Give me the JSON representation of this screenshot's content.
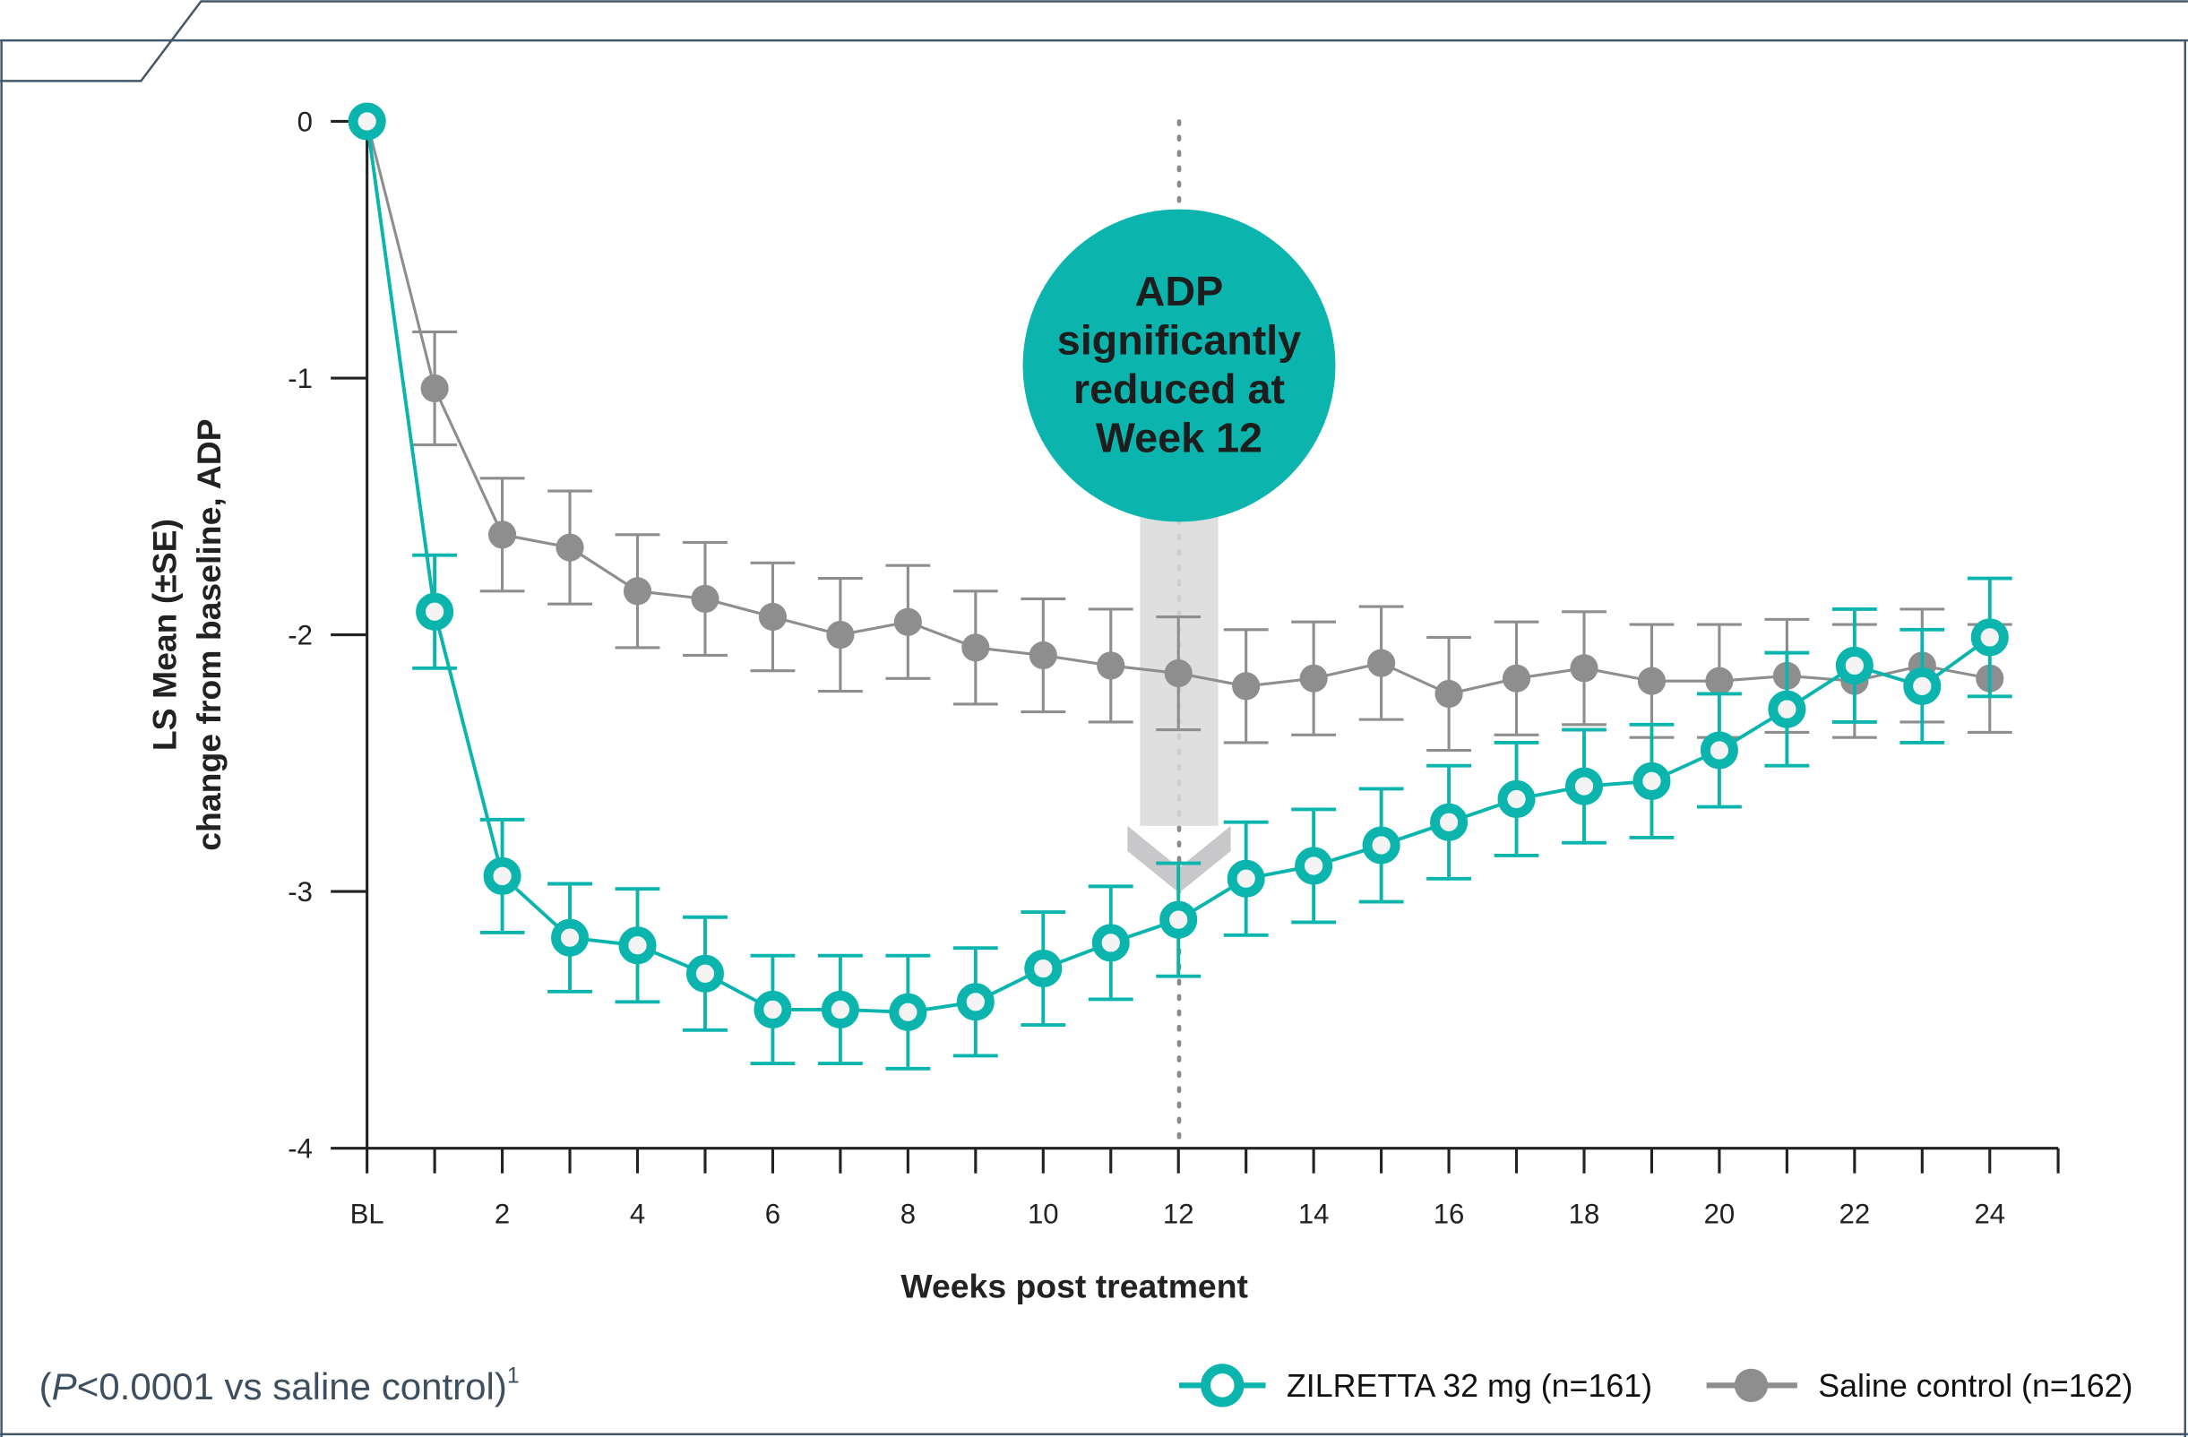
{
  "chart_data": {
    "type": "line",
    "xlabel": "Weeks post treatment",
    "ylabel": [
      "LS Mean (±SE)",
      "change from baseline, ADP"
    ],
    "ylim": [
      -4,
      0
    ],
    "yticks": [
      "0",
      "-1",
      "-2",
      "-3",
      "-4"
    ],
    "x": [
      0,
      1,
      2,
      3,
      4,
      5,
      6,
      7,
      8,
      9,
      10,
      11,
      12,
      13,
      14,
      15,
      16,
      17,
      18,
      19,
      20,
      21,
      22,
      23,
      24
    ],
    "xtick_labels": [
      "BL",
      "2",
      "4",
      "6",
      "8",
      "10",
      "12",
      "14",
      "16",
      "18",
      "20",
      "22",
      "24"
    ],
    "xtick_values": [
      0,
      2,
      4,
      6,
      8,
      10,
      12,
      14,
      16,
      18,
      20,
      22,
      24
    ],
    "grid": false,
    "legend_placement": "bottom-right",
    "series": [
      {
        "name": "ZILRETTA 32 mg (n=161)",
        "color": "#0bb5ad",
        "marker": "open-circle",
        "values": [
          0,
          -1.91,
          -2.94,
          -3.18,
          -3.21,
          -3.32,
          -3.46,
          -3.46,
          -3.47,
          -3.43,
          -3.3,
          -3.2,
          -3.11,
          -2.95,
          -2.9,
          -2.82,
          -2.73,
          -2.64,
          -2.59,
          -2.57,
          -2.45,
          -2.29,
          -2.12,
          -2.2,
          -2.01
        ],
        "se": [
          0,
          0.22,
          0.22,
          0.21,
          0.22,
          0.22,
          0.21,
          0.21,
          0.22,
          0.21,
          0.22,
          0.22,
          0.22,
          0.22,
          0.22,
          0.22,
          0.22,
          0.22,
          0.22,
          0.22,
          0.22,
          0.22,
          0.22,
          0.22,
          0.23
        ]
      },
      {
        "name": "Saline control (n=162)",
        "color": "#8e8e8e",
        "marker": "filled-circle",
        "values": [
          0,
          -1.04,
          -1.61,
          -1.66,
          -1.83,
          -1.86,
          -1.93,
          -2.0,
          -1.95,
          -2.05,
          -2.08,
          -2.12,
          -2.15,
          -2.2,
          -2.17,
          -2.11,
          -2.23,
          -2.17,
          -2.13,
          -2.18,
          -2.18,
          -2.16,
          -2.18,
          -2.12,
          -2.17
        ],
        "se": [
          0,
          0.22,
          0.22,
          0.22,
          0.22,
          0.22,
          0.21,
          0.22,
          0.22,
          0.22,
          0.22,
          0.22,
          0.22,
          0.22,
          0.22,
          0.22,
          0.22,
          0.22,
          0.22,
          0.22,
          0.22,
          0.22,
          0.22,
          0.22,
          0.21
        ]
      }
    ],
    "annotations": {
      "callout_lines": [
        "ADP",
        "significantly",
        "reduced at",
        "Week 12"
      ],
      "callout_color": "#0bb5ad",
      "reference_week": 12
    },
    "footnote": {
      "prefix": "(",
      "p": "P",
      "rest": "<0.0001 vs saline control)",
      "sup": "1"
    }
  }
}
